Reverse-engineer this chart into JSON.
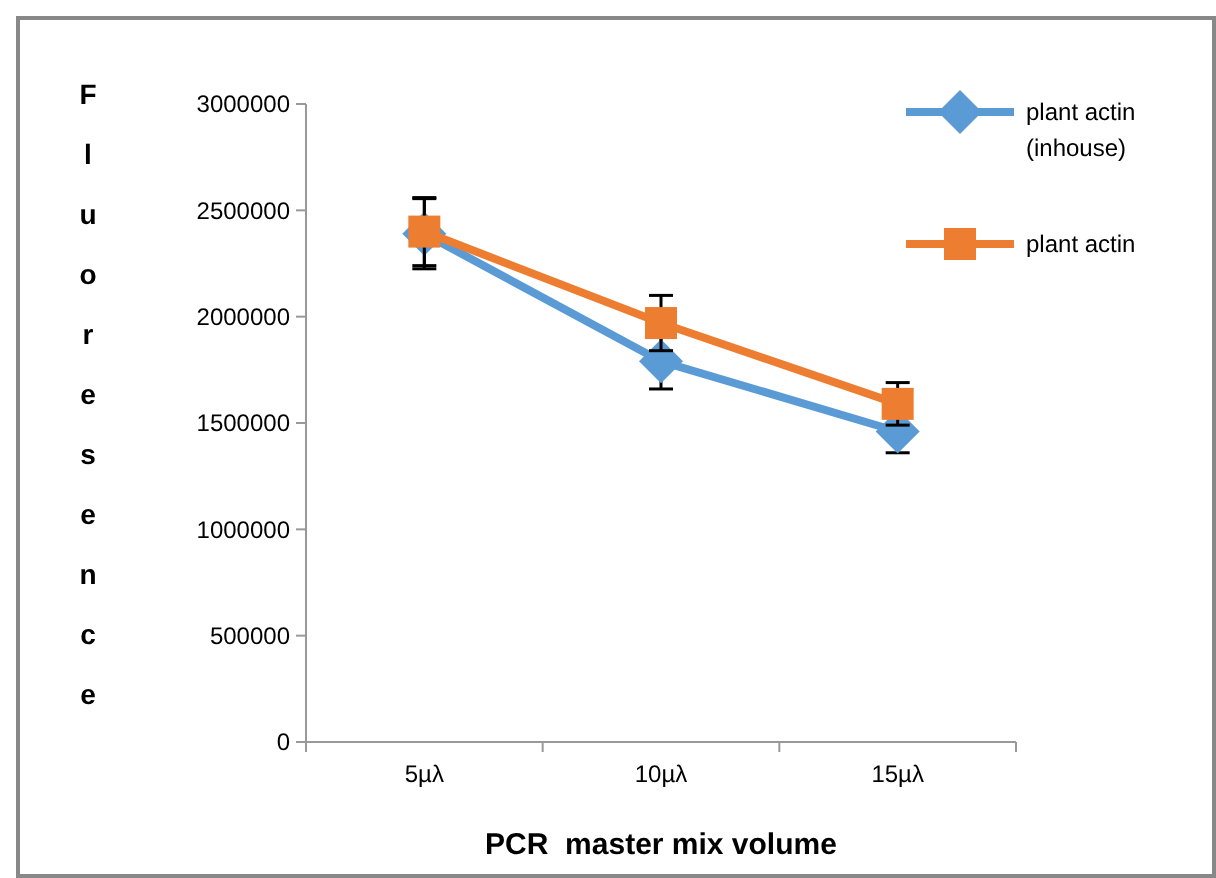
{
  "chart_data": {
    "type": "line",
    "xlabel": "PCR  master mix volume",
    "ylabel": "Fluoresence",
    "categories": [
      "5µλ",
      "10µλ",
      "15µλ"
    ],
    "series": [
      {
        "name": "plant actin (inhouse)",
        "color": "#5b9bd5",
        "values": [
          2390000,
          1790000,
          1460000
        ],
        "errors": [
          165000,
          130000,
          100000
        ],
        "marker": "diamond"
      },
      {
        "name": "plant actin",
        "color": "#ed7d31",
        "values": [
          2400000,
          1970000,
          1590000
        ],
        "errors": [
          160000,
          130000,
          100000
        ],
        "marker": "square"
      }
    ],
    "ylim": [
      0,
      3000000
    ],
    "yticks": [
      0,
      500000,
      1000000,
      1500000,
      2000000,
      2500000,
      3000000
    ],
    "grid": false,
    "legend": "top right",
    "line_style": "solid"
  }
}
